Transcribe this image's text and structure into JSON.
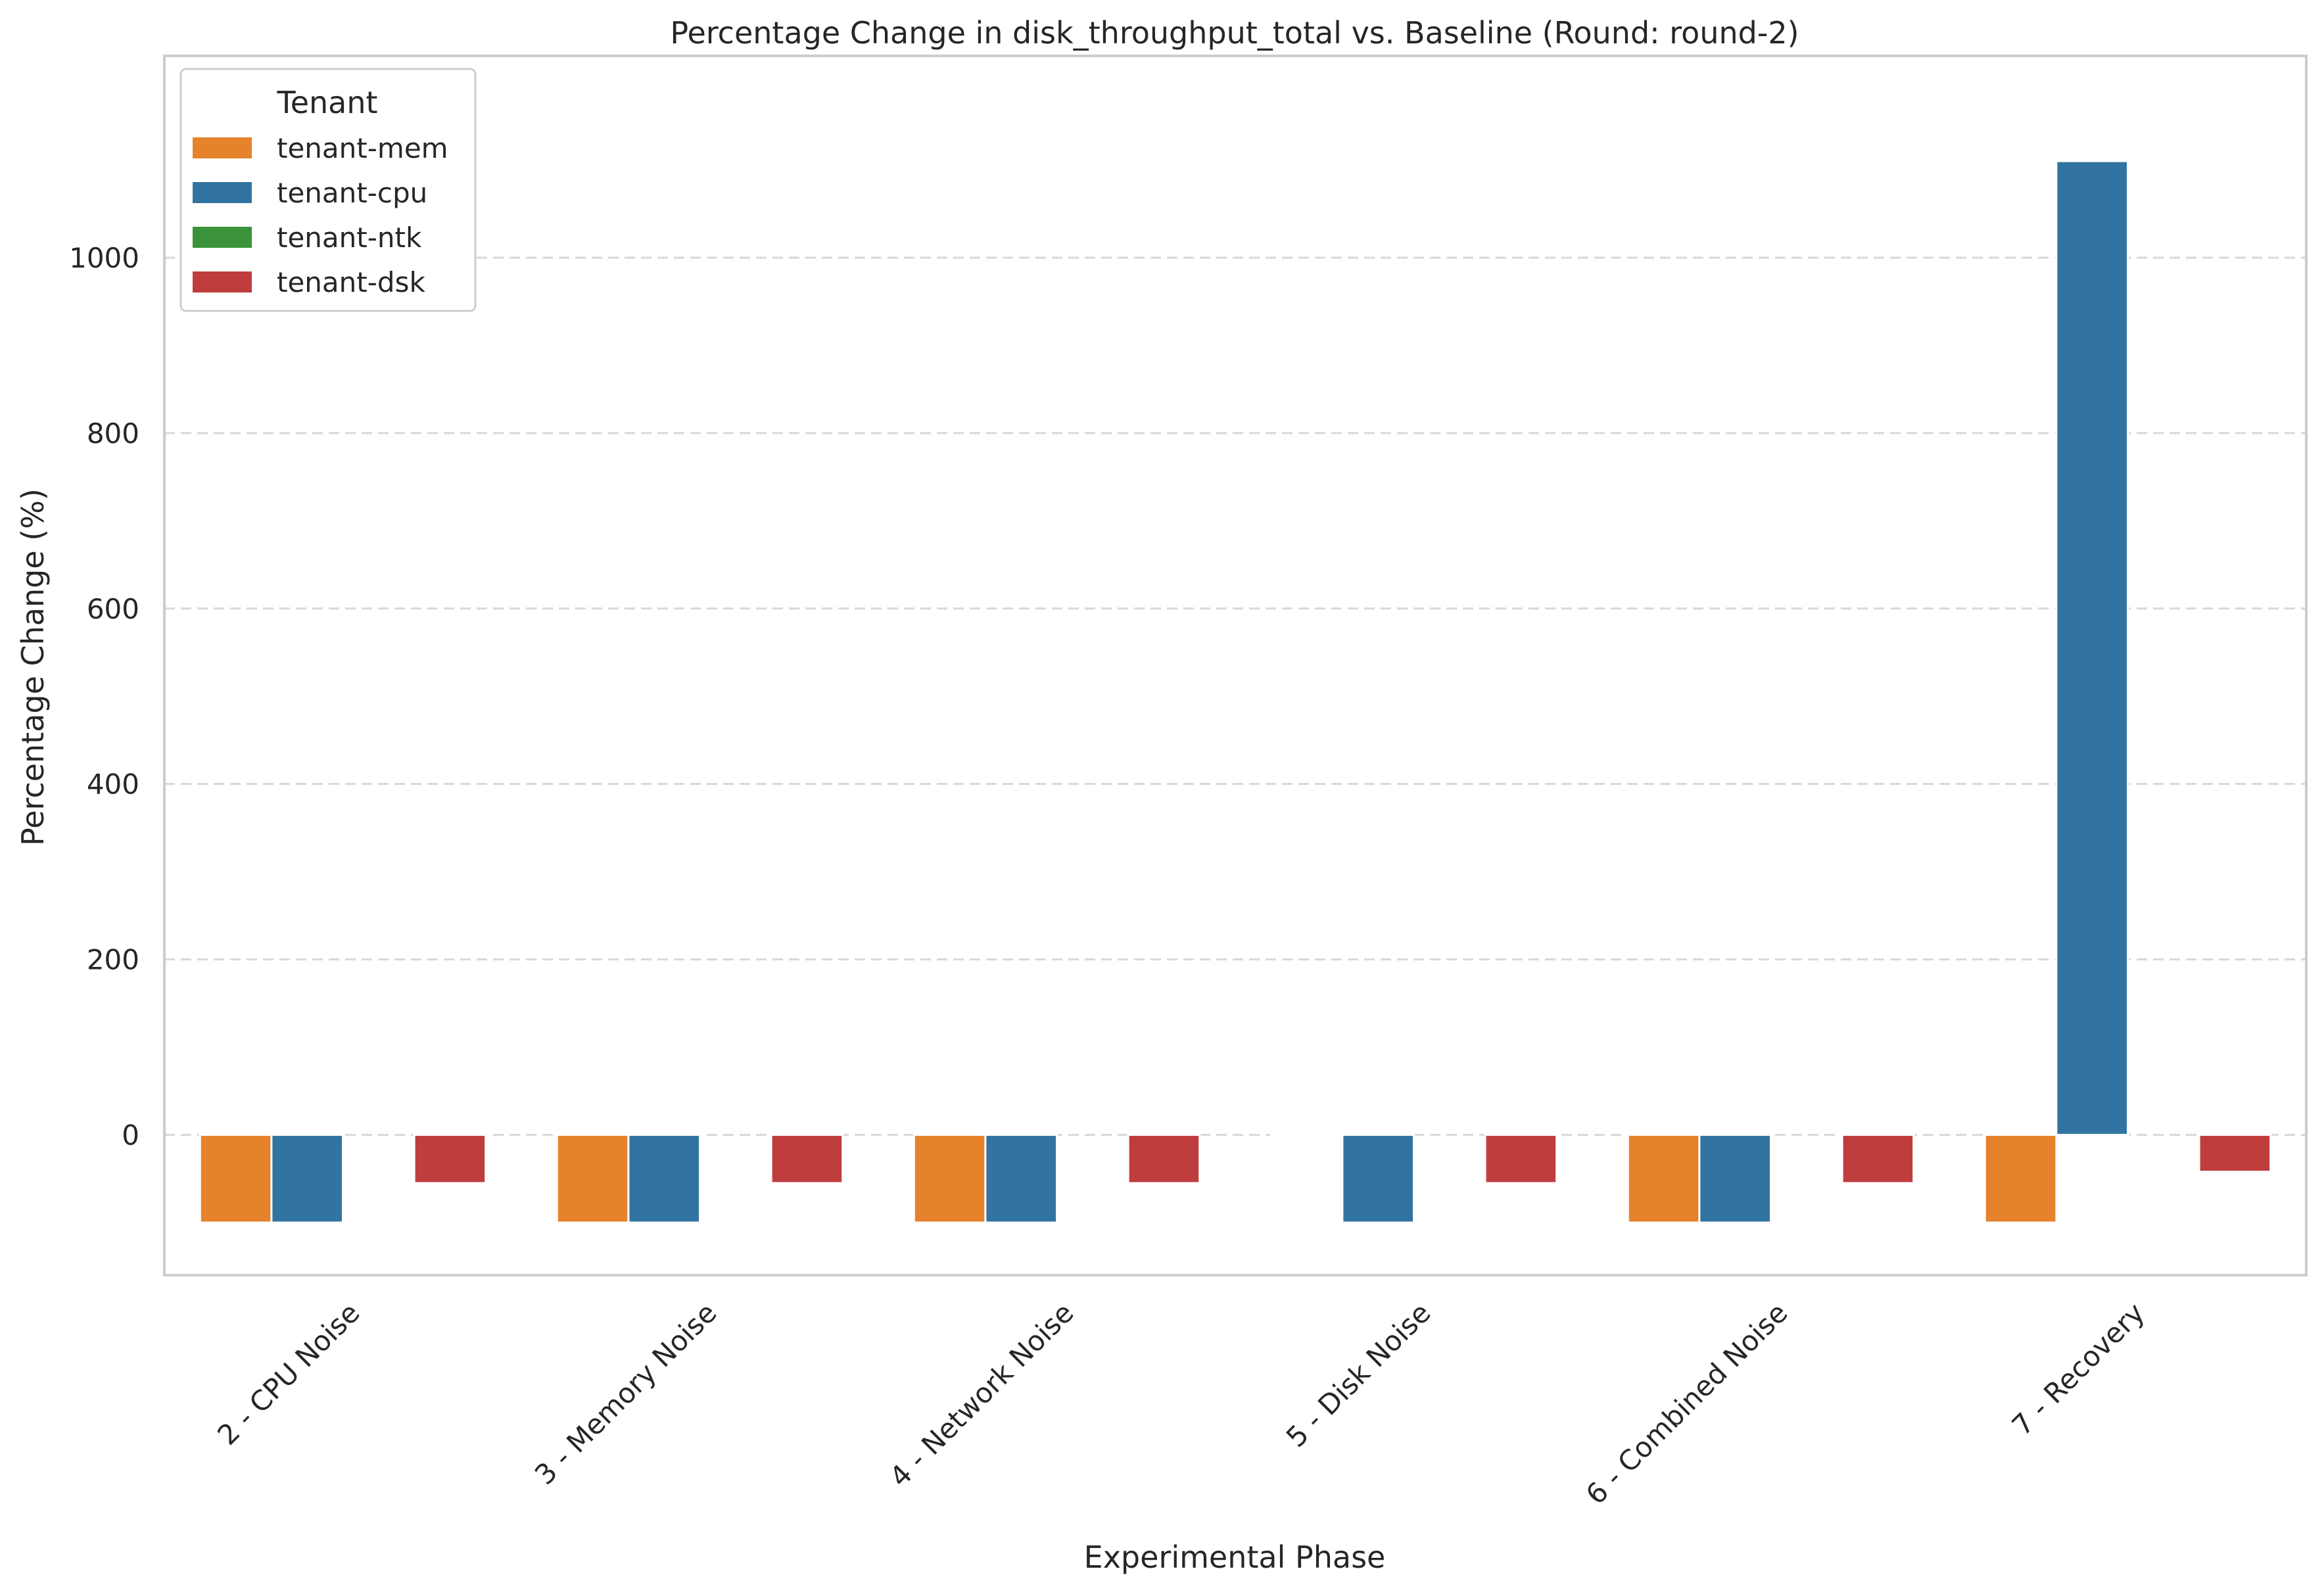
{
  "chart_data": {
    "type": "bar",
    "title": "Percentage Change in disk_throughput_total vs. Baseline (Round: round-2)",
    "xlabel": "Experimental Phase",
    "ylabel": "Percentage Change (%)",
    "ylim": [
      -160,
      1230
    ],
    "yticks": [
      0,
      200,
      400,
      600,
      800,
      1000
    ],
    "grid": "y dashed",
    "legend": {
      "title": "Tenant",
      "placement": "top-left"
    },
    "categories": [
      "2 - CPU Noise",
      "3 - Memory Noise",
      "4 - Network Noise",
      "5 - Disk Noise",
      "6 - Combined Noise",
      "7 - Recovery"
    ],
    "series": [
      {
        "name": "tenant-mem",
        "color": "#e6822b",
        "values": [
          -100,
          -100,
          -100,
          -1,
          -100,
          -100
        ]
      },
      {
        "name": "tenant-cpu",
        "color": "#3274a1",
        "values": [
          -100,
          -100,
          -100,
          -100,
          -100,
          1110
        ]
      },
      {
        "name": "tenant-ntk",
        "color": "#3a923a",
        "values": [
          0,
          0,
          0,
          0,
          0,
          0
        ]
      },
      {
        "name": "tenant-dsk",
        "color": "#c03d3e",
        "values": [
          -55,
          -55,
          -55,
          -55,
          -55,
          -42
        ]
      }
    ]
  }
}
